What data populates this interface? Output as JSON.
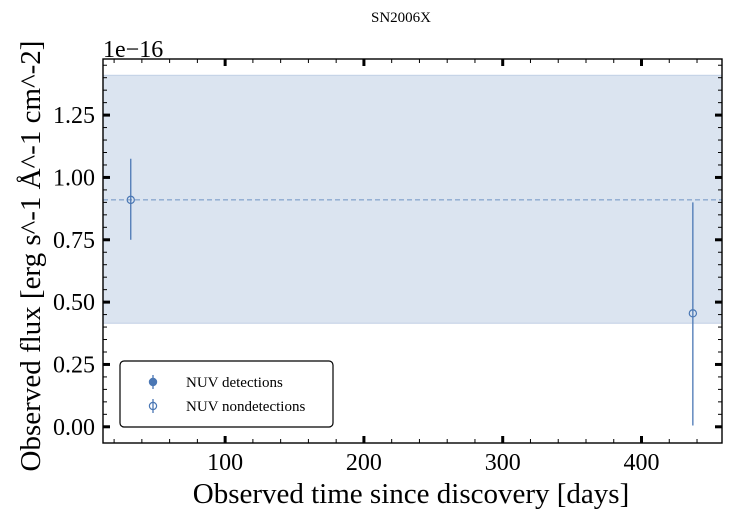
{
  "chart_data": {
    "type": "scatter",
    "title": "SN2006X",
    "xlabel": "Observed time since discovery [days]",
    "ylabel": "Observed flux [erg s^-1 Å^-1 cm^-2]",
    "y_offset_label": "1e−16",
    "xlim": [
      12,
      458
    ],
    "ylim": [
      -0.065,
      1.475
    ],
    "xticks": [
      100,
      200,
      300,
      400
    ],
    "xtick_labels": [
      "100",
      "200",
      "300",
      "400"
    ],
    "yticks": [
      0.0,
      0.25,
      0.5,
      0.75,
      1.0,
      1.25
    ],
    "ytick_labels": [
      "0.00",
      "0.25",
      "0.50",
      "0.75",
      "1.00",
      "1.25"
    ],
    "grid": false,
    "legend_placement": "lower-left",
    "reference_line": {
      "y": 0.91,
      "style": "dashed",
      "color": "#4a77b4"
    },
    "reference_band": {
      "y_low": 0.415,
      "y_high": 1.41,
      "color": "#4a77b4"
    },
    "series": [
      {
        "name": "NUV detections",
        "marker": "filled-circle",
        "color": "#4a77b4",
        "points": []
      },
      {
        "name": "NUV nondetections",
        "marker": "open-circle",
        "color": "#4a77b4",
        "points": [
          {
            "x": 32,
            "y": 0.91,
            "yerr_low": 0.16,
            "yerr_high": 0.165
          },
          {
            "x": 437,
            "y": 0.455,
            "yerr_low": 0.45,
            "yerr_high": 0.445
          }
        ]
      }
    ]
  }
}
